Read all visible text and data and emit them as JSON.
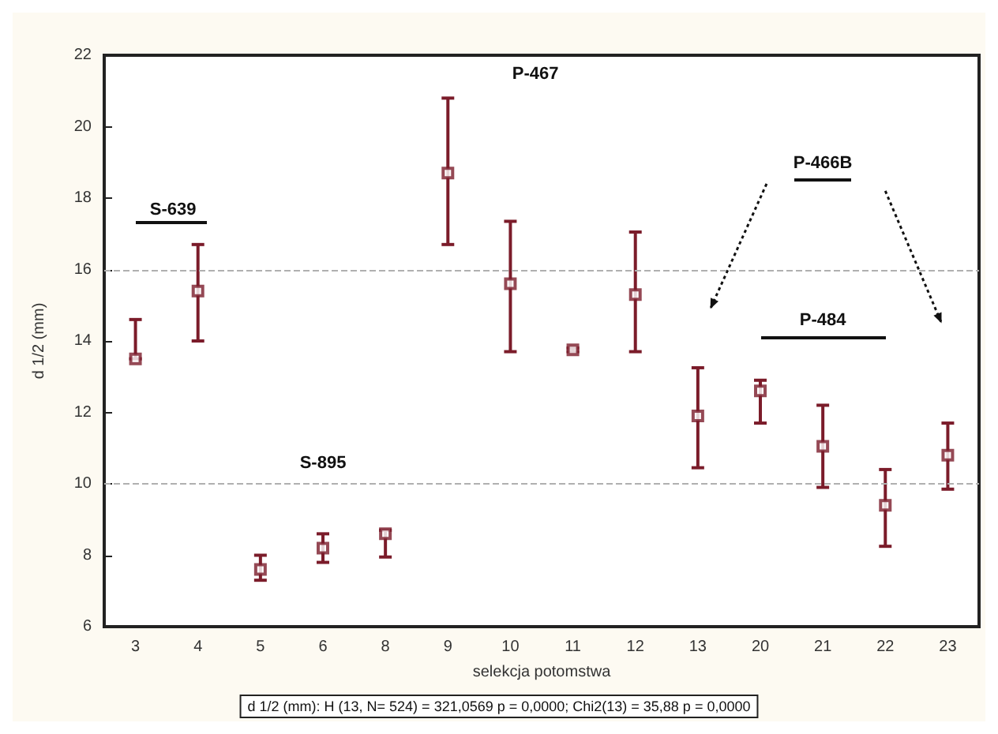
{
  "chart_data": {
    "type": "scatter",
    "xlabel": "selekcja potomstwa",
    "ylabel": "d 1/2 (mm)",
    "categories": [
      "3",
      "4",
      "5",
      "6",
      "8",
      "9",
      "10",
      "11",
      "12",
      "13",
      "20",
      "21",
      "22",
      "23"
    ],
    "series": [
      {
        "color": "#7b1c2a",
        "values": [
          13.5,
          15.4,
          7.6,
          8.2,
          8.6,
          18.7,
          15.6,
          13.75,
          15.3,
          11.9,
          12.6,
          11.05,
          9.4,
          10.8
        ],
        "errors": [
          [
            13.5,
            14.6
          ],
          [
            14.0,
            16.7
          ],
          [
            7.3,
            8.0
          ],
          [
            7.8,
            8.6
          ],
          [
            7.95,
            8.7
          ],
          [
            16.7,
            20.8
          ],
          [
            13.7,
            17.35
          ],
          [
            13.7,
            13.8
          ],
          [
            13.7,
            17.05
          ],
          [
            10.45,
            13.25
          ],
          [
            11.7,
            12.9
          ],
          [
            9.9,
            12.2
          ],
          [
            8.25,
            10.4
          ],
          [
            9.85,
            11.7
          ]
        ]
      }
    ],
    "ylim": [
      6,
      22
    ],
    "yticks": [
      6,
      8,
      10,
      12,
      14,
      16,
      18,
      20,
      22
    ],
    "marker": "square",
    "grid": false,
    "ref_lines": [
      {
        "axis": "y",
        "value": 10,
        "color": "#b0b0b0",
        "line_style": "dashed"
      },
      {
        "axis": "y",
        "value": 16,
        "color": "#b0b0b0",
        "line_style": "dashed"
      }
    ],
    "annotations": [
      "P-467",
      "S-639",
      "S-895",
      "P-466B",
      "P-484",
      "d 1/2 (mm): H (13, N= 524) = 321,0569 p = 0,0000; Chi2(13) = 35,88 p = 0,0000"
    ]
  }
}
